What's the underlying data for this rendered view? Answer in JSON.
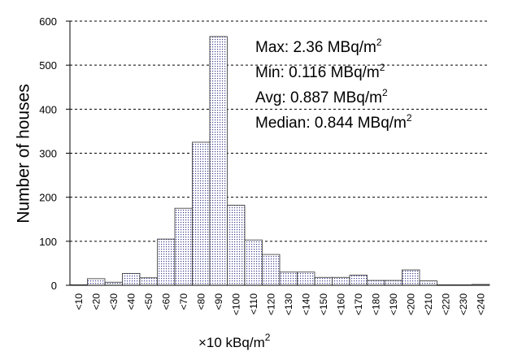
{
  "chart_data": {
    "type": "bar",
    "ylabel": "Number of houses",
    "xlabel_prefix": "×10 kBq/m",
    "xlabel_sup": "2",
    "ylim": [
      0,
      600
    ],
    "yticks": [
      "0",
      "100",
      "200",
      "300",
      "400",
      "500",
      "600"
    ],
    "grid": true,
    "categories": [
      "<10",
      "<20",
      "<30",
      "<40",
      "<50",
      "<60",
      "<70",
      "<80",
      "<90",
      "<100",
      "<110",
      "<120",
      "<130",
      "<140",
      "<150",
      "<160",
      "<170",
      "<180",
      "<190",
      "<200",
      "<210",
      "<220",
      "<230",
      "<240"
    ],
    "values": [
      1,
      15,
      7,
      27,
      17,
      105,
      175,
      325,
      565,
      182,
      103,
      70,
      30,
      30,
      18,
      18,
      23,
      11,
      11,
      35,
      10,
      1,
      1,
      2
    ],
    "annotations": [
      {
        "label": "Max: 2.36 MBq/m",
        "sup": "2"
      },
      {
        "label": "Min: 0.116 MBq/m",
        "sup": "2"
      },
      {
        "label": "Avg: 0.887 MBq/m",
        "sup": "2"
      },
      {
        "label": "Median: 0.844 MBq/m",
        "sup": "2"
      }
    ]
  }
}
